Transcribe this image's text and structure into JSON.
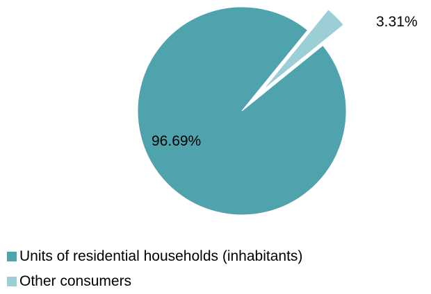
{
  "chart_data": {
    "type": "pie",
    "slices": [
      {
        "label": "Units of residential households (inhabitants)",
        "value": 96.69,
        "value_label": "96.69%",
        "color": "#4fa3ad"
      },
      {
        "label": "Other consumers",
        "value": 3.31,
        "value_label": "3.31%",
        "color": "#9ccfd5",
        "exploded": true
      }
    ],
    "legend_position": "bottom-left"
  }
}
